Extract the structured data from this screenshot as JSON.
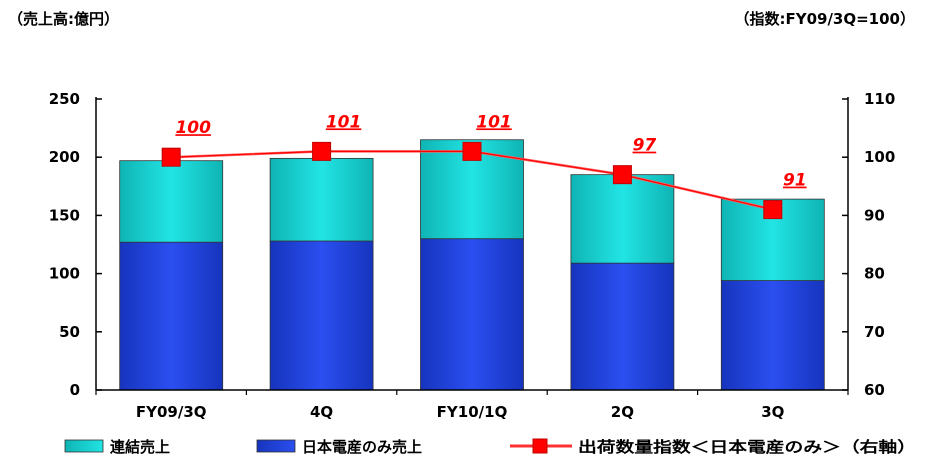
{
  "header": {
    "left_unit": "（売上高:億円）",
    "right_unit": "（指数:FY09/3Q=100）"
  },
  "colors": {
    "consolidated": "#19d2d2",
    "consolidated_dark": "#0aa5a5",
    "nidec_only": "#2546e6",
    "nidec_only_dark": "#142caa",
    "line": "#ff0000"
  },
  "chart_data": {
    "type": "bar",
    "stacked": true,
    "categories": [
      "FY09/3Q",
      "4Q",
      "FY10/1Q",
      "2Q",
      "3Q"
    ],
    "series": [
      {
        "name": "日本電産のみ売上",
        "type": "bar",
        "axis": "left",
        "values": [
          127,
          128,
          130,
          109,
          94
        ]
      },
      {
        "name": "連結売上",
        "type": "bar",
        "axis": "left",
        "values": [
          70,
          71,
          85,
          76,
          70
        ]
      },
      {
        "name": "出荷数量指数＜日本電産のみ＞(右軸)",
        "type": "line",
        "axis": "right",
        "values": [
          100,
          101,
          101,
          97,
          91
        ]
      }
    ],
    "data_labels": [
      "100",
      "101",
      "101",
      "97",
      "91"
    ],
    "left_axis": {
      "ylim": [
        0,
        250
      ],
      "ticks": [
        "0",
        "50",
        "100",
        "150",
        "200",
        "250"
      ]
    },
    "right_axis": {
      "ylim": [
        60,
        110
      ],
      "ticks": [
        "60",
        "70",
        "80",
        "90",
        "100",
        "110"
      ]
    },
    "legend": {
      "position": "bottom",
      "items": [
        "連結売上",
        "日本電産のみ売上",
        "出荷数量指数＜日本電産のみ＞（右軸）"
      ]
    },
    "grid": false
  }
}
